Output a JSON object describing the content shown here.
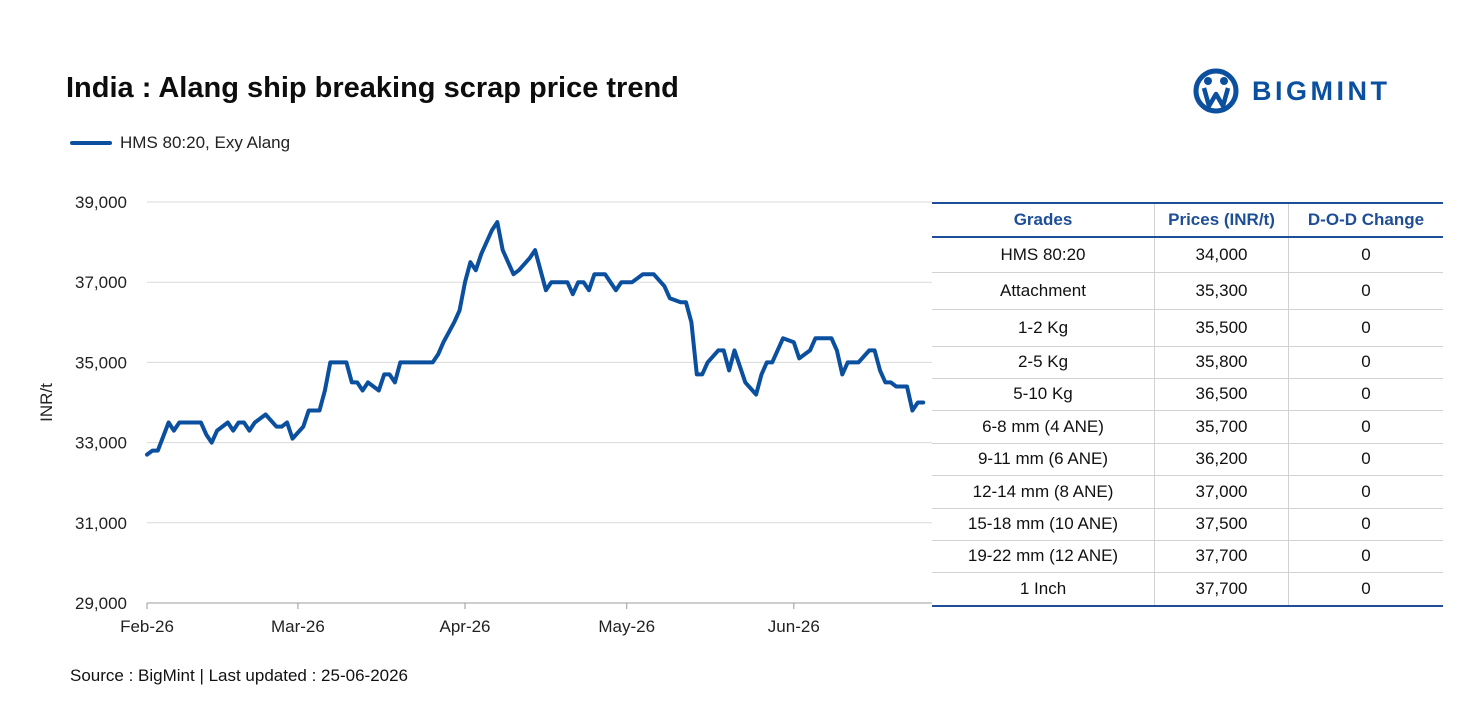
{
  "title": "India : Alang ship breaking scrap price trend",
  "logo": {
    "brand": "BIGMINT",
    "icon": "bigmint-logo-icon",
    "color": "#0b4f9f"
  },
  "source": "Source : BigMint | Last updated : 25-06-2026",
  "table": {
    "headers": [
      "Grades",
      "Prices (INR/t)",
      "D-O-D Change"
    ],
    "rows": [
      [
        "HMS 80:20",
        "34,000",
        "0"
      ],
      [
        "Attachment",
        "35,300",
        "0"
      ],
      [
        "1-2 Kg",
        "35,500",
        "0"
      ],
      [
        "2-5 Kg",
        "35,800",
        "0"
      ],
      [
        "5-10 Kg",
        "36,500",
        "0"
      ],
      [
        "6-8 mm (4 ANE)",
        "35,700",
        "0"
      ],
      [
        "9-11 mm (6 ANE)",
        "36,200",
        "0"
      ],
      [
        "12-14 mm (8 ANE)",
        "37,000",
        "0"
      ],
      [
        "15-18 mm (10 ANE)",
        "37,500",
        "0"
      ],
      [
        "19-22 mm (12 ANE)",
        "37,700",
        "0"
      ],
      [
        "1 Inch",
        "37,700",
        "0"
      ]
    ]
  },
  "chart_data": {
    "type": "line",
    "title": "India : Alang ship breaking scrap price trend",
    "ylabel": "INR/t",
    "xlabel": "",
    "ylim": [
      29000,
      39000
    ],
    "yticks": [
      29000,
      31000,
      33000,
      35000,
      37000,
      39000
    ],
    "ytick_labels": [
      "29,000",
      "31,000",
      "33,000",
      "35,000",
      "37,000",
      "39,000"
    ],
    "xlim": [
      "2026-02-01",
      "2026-06-24"
    ],
    "xticks": [
      "2026-02-01",
      "2026-03-01",
      "2026-04-01",
      "2026-05-01",
      "2026-06-01"
    ],
    "xtick_labels": [
      "Feb-26",
      "Mar-26",
      "Apr-26",
      "May-26",
      "Jun-26"
    ],
    "grid": "horizontal",
    "legend": "top-left",
    "series": [
      {
        "name": "HMS 80:20, Exy Alang",
        "color": "#0b4f9f",
        "points": [
          [
            "2026-02-01",
            32700
          ],
          [
            "2026-02-02",
            32800
          ],
          [
            "2026-02-03",
            32800
          ],
          [
            "2026-02-05",
            33500
          ],
          [
            "2026-02-06",
            33300
          ],
          [
            "2026-02-07",
            33500
          ],
          [
            "2026-02-09",
            33500
          ],
          [
            "2026-02-11",
            33500
          ],
          [
            "2026-02-12",
            33200
          ],
          [
            "2026-02-13",
            33000
          ],
          [
            "2026-02-14",
            33300
          ],
          [
            "2026-02-16",
            33500
          ],
          [
            "2026-02-17",
            33300
          ],
          [
            "2026-02-18",
            33500
          ],
          [
            "2026-02-19",
            33500
          ],
          [
            "2026-02-20",
            33300
          ],
          [
            "2026-02-21",
            33500
          ],
          [
            "2026-02-23",
            33700
          ],
          [
            "2026-02-25",
            33400
          ],
          [
            "2026-02-26",
            33400
          ],
          [
            "2026-02-27",
            33500
          ],
          [
            "2026-02-28",
            33100
          ],
          [
            "2026-03-02",
            33400
          ],
          [
            "2026-03-03",
            33800
          ],
          [
            "2026-03-05",
            33800
          ],
          [
            "2026-03-06",
            34300
          ],
          [
            "2026-03-07",
            35000
          ],
          [
            "2026-03-09",
            35000
          ],
          [
            "2026-03-10",
            35000
          ],
          [
            "2026-03-11",
            34500
          ],
          [
            "2026-03-12",
            34500
          ],
          [
            "2026-03-13",
            34300
          ],
          [
            "2026-03-14",
            34500
          ],
          [
            "2026-03-16",
            34300
          ],
          [
            "2026-03-17",
            34700
          ],
          [
            "2026-03-18",
            34700
          ],
          [
            "2026-03-19",
            34500
          ],
          [
            "2026-03-20",
            35000
          ],
          [
            "2026-03-23",
            35000
          ],
          [
            "2026-03-25",
            35000
          ],
          [
            "2026-03-26",
            35000
          ],
          [
            "2026-03-27",
            35200
          ],
          [
            "2026-03-28",
            35500
          ],
          [
            "2026-03-30",
            36000
          ],
          [
            "2026-03-31",
            36300
          ],
          [
            "2026-04-01",
            37000
          ],
          [
            "2026-04-02",
            37500
          ],
          [
            "2026-04-03",
            37300
          ],
          [
            "2026-04-04",
            37700
          ],
          [
            "2026-04-06",
            38300
          ],
          [
            "2026-04-07",
            38500
          ],
          [
            "2026-04-08",
            37800
          ],
          [
            "2026-04-09",
            37500
          ],
          [
            "2026-04-10",
            37200
          ],
          [
            "2026-04-11",
            37300
          ],
          [
            "2026-04-13",
            37600
          ],
          [
            "2026-04-14",
            37800
          ],
          [
            "2026-04-15",
            37300
          ],
          [
            "2026-04-16",
            36800
          ],
          [
            "2026-04-17",
            37000
          ],
          [
            "2026-04-18",
            37000
          ],
          [
            "2026-04-20",
            37000
          ],
          [
            "2026-04-21",
            36700
          ],
          [
            "2026-04-22",
            37000
          ],
          [
            "2026-04-23",
            37000
          ],
          [
            "2026-04-24",
            36800
          ],
          [
            "2026-04-25",
            37200
          ],
          [
            "2026-04-27",
            37200
          ],
          [
            "2026-04-28",
            37000
          ],
          [
            "2026-04-29",
            36800
          ],
          [
            "2026-04-30",
            37000
          ],
          [
            "2026-05-02",
            37000
          ],
          [
            "2026-05-04",
            37200
          ],
          [
            "2026-05-06",
            37200
          ],
          [
            "2026-05-08",
            36900
          ],
          [
            "2026-05-09",
            36600
          ],
          [
            "2026-05-11",
            36500
          ],
          [
            "2026-05-12",
            36500
          ],
          [
            "2026-05-13",
            36000
          ],
          [
            "2026-05-14",
            34700
          ],
          [
            "2026-05-15",
            34700
          ],
          [
            "2026-05-16",
            35000
          ],
          [
            "2026-05-18",
            35300
          ],
          [
            "2026-05-19",
            35300
          ],
          [
            "2026-05-20",
            34800
          ],
          [
            "2026-05-21",
            35300
          ],
          [
            "2026-05-23",
            34500
          ],
          [
            "2026-05-25",
            34200
          ],
          [
            "2026-05-26",
            34700
          ],
          [
            "2026-05-27",
            35000
          ],
          [
            "2026-05-28",
            35000
          ],
          [
            "2026-05-30",
            35600
          ],
          [
            "2026-06-01",
            35500
          ],
          [
            "2026-06-02",
            35100
          ],
          [
            "2026-06-04",
            35300
          ],
          [
            "2026-06-05",
            35600
          ],
          [
            "2026-06-06",
            35600
          ],
          [
            "2026-06-08",
            35600
          ],
          [
            "2026-06-09",
            35300
          ],
          [
            "2026-06-10",
            34700
          ],
          [
            "2026-06-11",
            35000
          ],
          [
            "2026-06-13",
            35000
          ],
          [
            "2026-06-15",
            35300
          ],
          [
            "2026-06-16",
            35300
          ],
          [
            "2026-06-17",
            34800
          ],
          [
            "2026-06-18",
            34500
          ],
          [
            "2026-06-19",
            34500
          ],
          [
            "2026-06-20",
            34400
          ],
          [
            "2026-06-22",
            34400
          ],
          [
            "2026-06-23",
            33800
          ],
          [
            "2026-06-24",
            34000
          ],
          [
            "2026-06-25",
            34000
          ]
        ]
      }
    ]
  }
}
